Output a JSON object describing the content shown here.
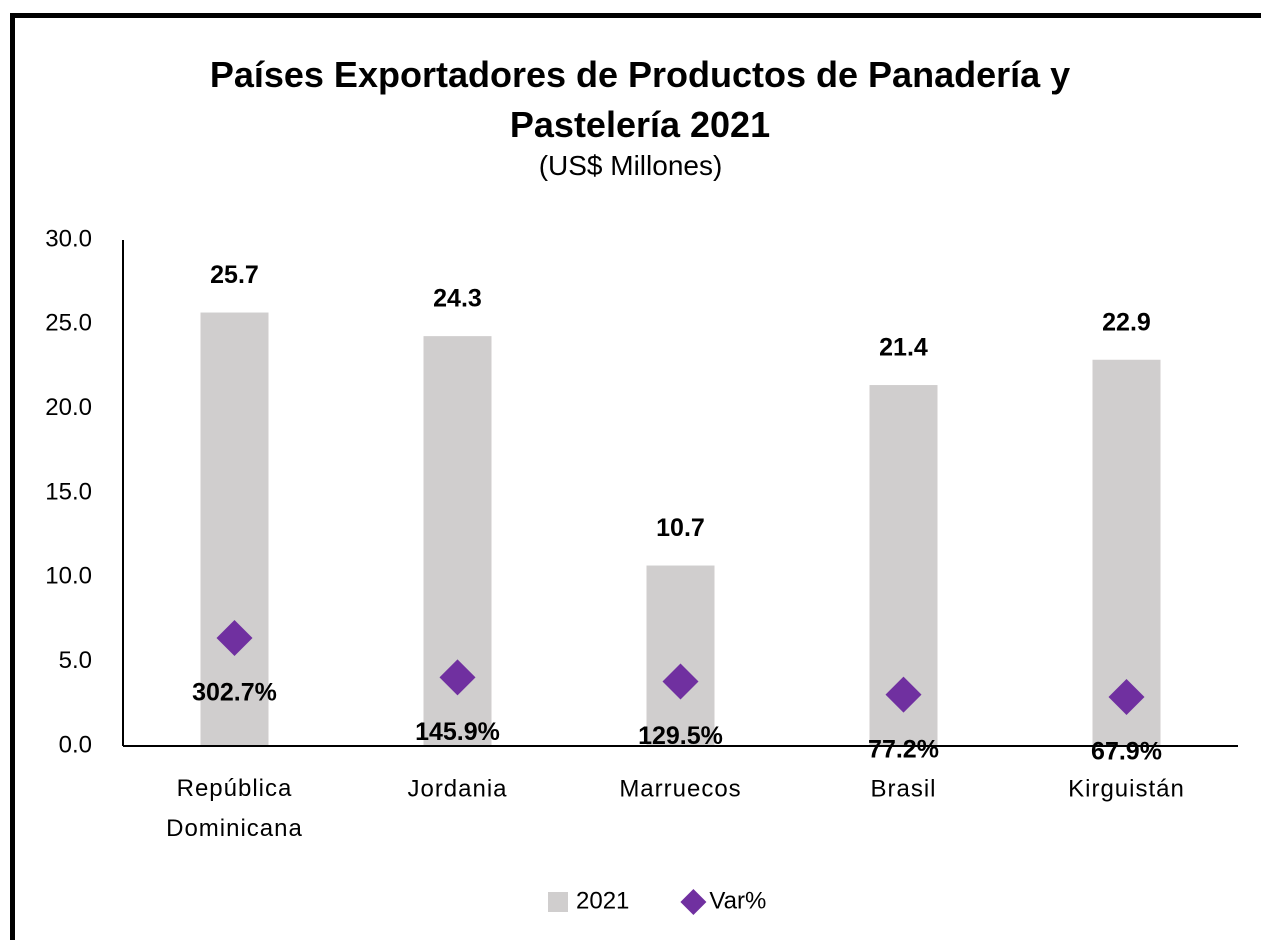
{
  "chart_data": {
    "type": "bar",
    "title": "Países Exportadores de Productos de Panadería y Pastelería 2021",
    "subtitle": "(US$ Millones)",
    "categories": [
      "República Dominicana",
      "Jordania",
      "Marruecos",
      "Brasil",
      "Kirguistán"
    ],
    "series": [
      {
        "name": "2021",
        "type": "bar",
        "color": "#d0cece",
        "values": [
          25.7,
          24.3,
          10.7,
          21.4,
          22.9
        ]
      },
      {
        "name": "Var%",
        "type": "scatter",
        "axis": "y2",
        "color": "#7030a0",
        "values": [
          302.7,
          145.9,
          129.5,
          77.2,
          67.9
        ],
        "value_labels": [
          "302.7%",
          "145.9%",
          "129.5%",
          "77.2%",
          "67.9%"
        ]
      }
    ],
    "ylim": [
      0,
      30
    ],
    "yticks": [
      {
        "value": 0,
        "label": "0.0"
      },
      {
        "value": 5,
        "label": "5.0"
      },
      {
        "value": 10,
        "label": "10.0"
      },
      {
        "value": 15,
        "label": "15.0"
      },
      {
        "value": 20,
        "label": "20.0"
      },
      {
        "value": 25,
        "label": "25.0"
      },
      {
        "value": 30,
        "label": "30.0"
      }
    ],
    "y2lim": [
      -127,
      1886
    ],
    "legend": "bottom"
  }
}
